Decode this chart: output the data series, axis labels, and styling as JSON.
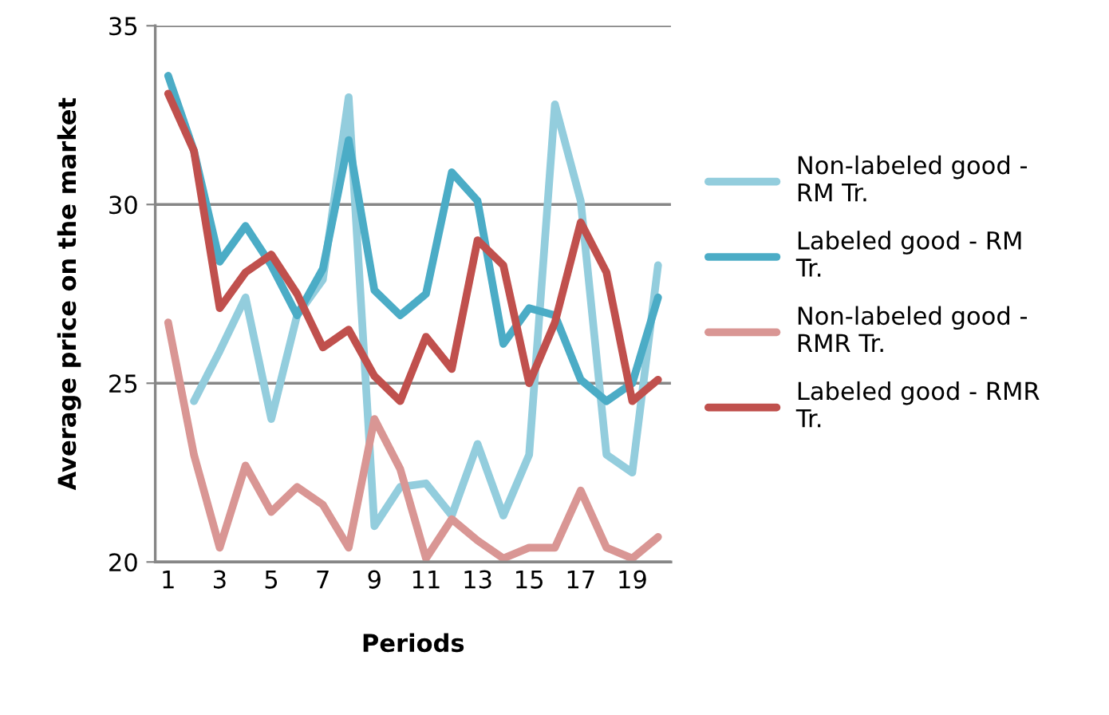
{
  "chart_data": {
    "type": "line",
    "xlabel": "Periods",
    "ylabel": "Average price on the market",
    "categories": [
      "1",
      null,
      "3",
      null,
      "5",
      null,
      "7",
      null,
      "9",
      null,
      "11",
      null,
      "13",
      null,
      "15",
      null,
      "17",
      null,
      "19",
      null
    ],
    "series": [
      {
        "name": "Non-labeled good -\nRM Tr.",
        "color": "#93cddd",
        "values": [
          null,
          24.5,
          25.9,
          27.4,
          24.0,
          26.9,
          27.9,
          33.0,
          21.0,
          22.1,
          22.2,
          21.3,
          23.3,
          21.3,
          23.0,
          32.8,
          30.1,
          23.0,
          22.5,
          28.3
        ]
      },
      {
        "name": "Labeled good - RM\nTr.",
        "color": "#4bacc6",
        "values": [
          33.6,
          31.5,
          28.4,
          29.4,
          28.3,
          26.9,
          28.2,
          31.8,
          27.6,
          26.9,
          27.5,
          30.9,
          30.1,
          26.1,
          27.1,
          26.9,
          25.1,
          24.5,
          25.0,
          27.4
        ]
      },
      {
        "name": "Non-labeled good -\nRMR Tr.",
        "color": "#d99694",
        "values": [
          26.7,
          23.0,
          20.4,
          22.7,
          21.4,
          22.1,
          21.6,
          20.4,
          24.0,
          22.6,
          20.1,
          21.2,
          20.6,
          20.1,
          20.4,
          20.4,
          22.0,
          20.4,
          20.1,
          20.7
        ]
      },
      {
        "name": "Labeled good - RMR\nTr.",
        "color": "#c0504d",
        "values": [
          33.1,
          31.5,
          27.1,
          28.1,
          28.6,
          27.5,
          26.0,
          26.5,
          25.2,
          24.5,
          26.3,
          25.4,
          29.0,
          28.3,
          25.0,
          26.7,
          29.5,
          28.1,
          24.5,
          25.1
        ]
      }
    ],
    "ylim": [
      20,
      35
    ],
    "yticks": [
      20,
      25,
      30,
      35
    ],
    "grid": "y",
    "legend": "right",
    "marker": "none",
    "line_style": "solid"
  }
}
